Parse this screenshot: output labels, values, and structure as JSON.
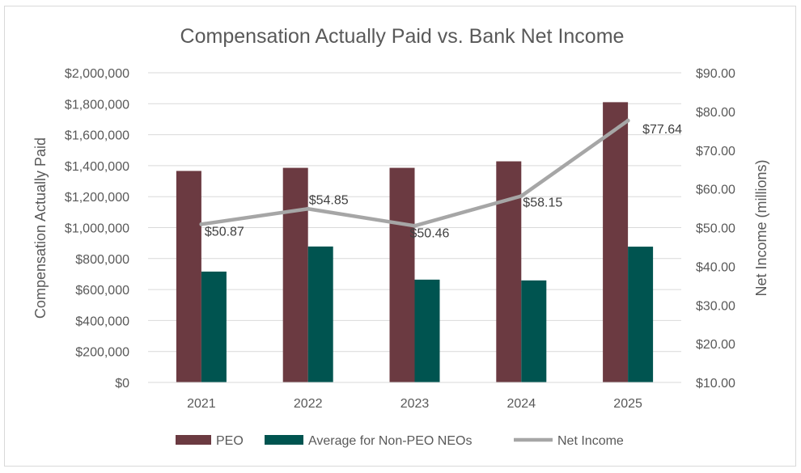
{
  "chart_data": {
    "type": "bar",
    "title": "Compensation Actually Paid vs. Bank Net Income",
    "categories": [
      "2021",
      "2022",
      "2023",
      "2024",
      "2025"
    ],
    "series": [
      {
        "name": "PEO",
        "kind": "bar",
        "axis": "left",
        "color": "#6b3a41",
        "values": [
          1366000,
          1386000,
          1386000,
          1428000,
          1810000
        ]
      },
      {
        "name": "Average for Non-PEO NEOs",
        "kind": "bar",
        "axis": "left",
        "color": "#005450",
        "values": [
          716000,
          878000,
          664000,
          659000,
          877000
        ]
      },
      {
        "name": "Net Income",
        "kind": "line",
        "axis": "right",
        "color": "#a6a6a6",
        "values": [
          50.87,
          54.85,
          50.46,
          58.15,
          77.64
        ],
        "labels": [
          "$50.87",
          "$54.85",
          "$50.46",
          "$58.15",
          "$77.64"
        ]
      }
    ],
    "ylabel": "Compensation Actually Paid",
    "ylabel_right": "Net Income (millions)",
    "ylim": [
      0,
      2000000
    ],
    "ylim_right": [
      10,
      90
    ],
    "yticks": [
      "$0",
      "$200,000",
      "$400,000",
      "$600,000",
      "$800,000",
      "$1,000,000",
      "$1,200,000",
      "$1,400,000",
      "$1,600,000",
      "$1,800,000",
      "$2,000,000"
    ],
    "yticks_right": [
      "$10.00",
      "$20.00",
      "$30.00",
      "$40.00",
      "$50.00",
      "$60.00",
      "$70.00",
      "$80.00",
      "$90.00"
    ],
    "grid": true,
    "legend": "bottom"
  }
}
